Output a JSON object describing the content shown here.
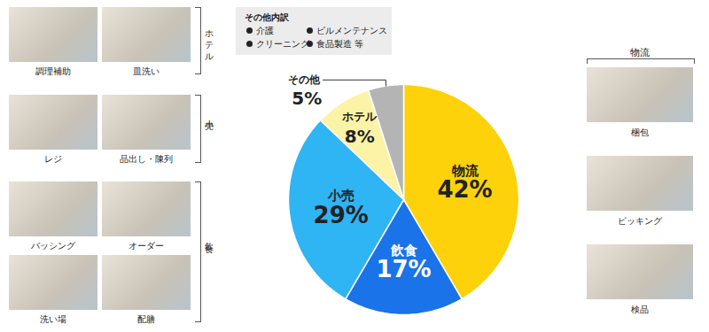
{
  "chart_data": {
    "type": "pie",
    "categories": [
      "物流",
      "飲食",
      "小売",
      "ホテル",
      "その他"
    ],
    "values": [
      42,
      17,
      29,
      8,
      5
    ],
    "value_labels": [
      "42%",
      "17%",
      "29%",
      "8%",
      "5%"
    ],
    "colors": [
      "#fdd20a",
      "#1a73e8",
      "#2fb4f4",
      "#fdf3a6",
      "#b4b4b4"
    ],
    "data_labels": true
  },
  "breakdown": {
    "title": "その他内訳",
    "items": [
      "介護",
      "ビルメンテナンス",
      "クリーニング",
      "食品製造 等"
    ]
  },
  "photo_groups": [
    {
      "label": "ホテル",
      "items": [
        "調理補助",
        "皿洗い"
      ]
    },
    {
      "label": "小売",
      "items": [
        "レジ",
        "品出し・陳列"
      ]
    },
    {
      "label": "飲食",
      "items": [
        "バッシング",
        "オーダー",
        "洗い場",
        "配膳"
      ]
    },
    {
      "label": "物流",
      "items": [
        "梱包",
        "ピッキング",
        "検品"
      ]
    }
  ]
}
